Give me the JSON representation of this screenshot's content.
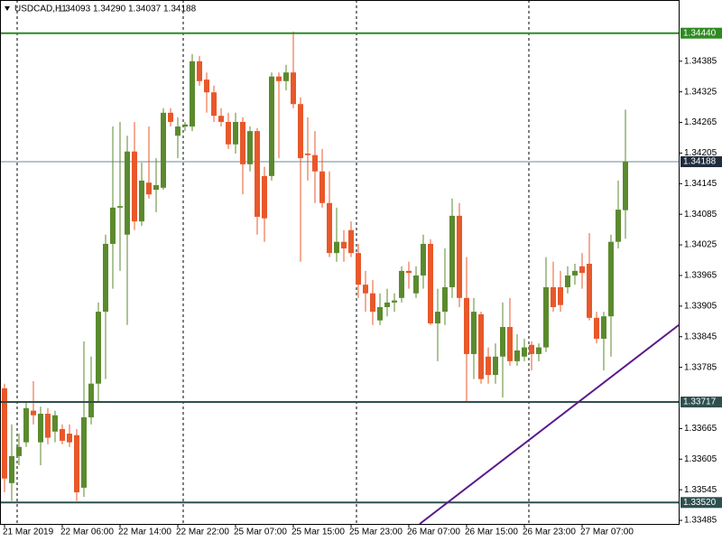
{
  "chart_data": {
    "type": "candlestick",
    "title": "USDCAD,H1",
    "ohlc_labels": [
      "1.34093",
      "1.34290",
      "1.34037",
      "1.34188"
    ],
    "candles": {
      "open": [
        1.33744,
        1.33558,
        1.33611,
        1.33638,
        1.337,
        1.33638,
        1.33694,
        1.33659,
        1.33664,
        1.33655,
        1.33652,
        1.33549,
        1.33687,
        1.33753,
        1.33894,
        1.34027,
        1.34098,
        1.34045,
        1.34208,
        1.34071,
        1.34147,
        1.34133,
        1.34137,
        1.34284,
        1.34239,
        1.34257,
        1.34257,
        1.34385,
        1.34349,
        1.34324,
        1.34278,
        1.34266,
        1.34222,
        1.34266,
        1.34183,
        1.34248,
        1.3416,
        1.3416,
        1.34355,
        1.34346,
        1.34363,
        1.34301,
        1.34204,
        1.34201,
        1.34169,
        1.34107,
        1.34009,
        1.34031,
        1.34054,
        1.34009,
        1.33947,
        1.3393,
        1.33877,
        1.33903,
        1.33912,
        1.33921,
        1.33974,
        1.3393,
        1.33965,
        1.34027,
        1.33871,
        1.33894,
        1.33942,
        1.34082,
        1.33921,
        1.33811,
        1.33889,
        1.33806,
        1.3377,
        1.33806,
        1.33864,
        1.33797,
        1.33806,
        1.33829,
        1.33811,
        1.33824,
        1.33942,
        1.33942,
        1.33942,
        1.33965,
        1.33983,
        1.33988,
        1.33882,
        1.33841,
        1.33885,
        1.34031,
        1.34093
      ],
      "high": [
        1.33753,
        1.33673,
        1.33655,
        1.33717,
        1.33758,
        1.33708,
        1.33705,
        1.337,
        1.33673,
        1.33673,
        1.33664,
        1.33836,
        1.33806,
        1.33912,
        1.34045,
        1.34257,
        1.34266,
        1.34239,
        1.34266,
        1.34186,
        1.34257,
        1.34195,
        1.34293,
        1.34293,
        1.34275,
        1.34266,
        1.34399,
        1.34395,
        1.34363,
        1.34337,
        1.34293,
        1.34284,
        1.34284,
        1.34275,
        1.34257,
        1.34254,
        1.34178,
        1.34363,
        1.34363,
        1.34378,
        1.34443,
        1.34314,
        1.34275,
        1.34248,
        1.34213,
        1.34169,
        1.34098,
        1.34054,
        1.34071,
        1.34027,
        1.33974,
        1.33956,
        1.3393,
        1.33939,
        1.3393,
        1.33983,
        1.33992,
        1.33983,
        1.34045,
        1.34036,
        1.33939,
        1.34018,
        1.34116,
        1.34107,
        1.34001,
        1.33921,
        1.33894,
        1.33824,
        1.33832,
        1.33912,
        1.33921,
        1.3385,
        1.33841,
        1.33836,
        1.33832,
        1.34001,
        1.33992,
        1.33974,
        1.33983,
        1.33988,
        1.34009,
        1.34048,
        1.33894,
        1.33894,
        1.34045,
        1.34151,
        1.3429
      ],
      "low": [
        1.3354,
        1.33523,
        1.33593,
        1.33629,
        1.33673,
        1.33593,
        1.33634,
        1.33638,
        1.33634,
        1.33629,
        1.33523,
        1.33531,
        1.33673,
        1.33717,
        1.33762,
        1.33939,
        1.33974,
        1.33868,
        1.34054,
        1.34062,
        1.34116,
        1.34089,
        1.34133,
        1.34257,
        1.34195,
        1.34248,
        1.34248,
        1.34337,
        1.34284,
        1.34266,
        1.34257,
        1.34213,
        1.34204,
        1.34124,
        1.34169,
        1.34045,
        1.34031,
        1.34151,
        1.34195,
        1.34328,
        1.34293,
        1.33992,
        1.34151,
        1.34107,
        1.34098,
        1.34001,
        1.33992,
        1.33992,
        1.34001,
        1.33921,
        1.33894,
        1.33868,
        1.33868,
        1.33885,
        1.33894,
        1.33912,
        1.33939,
        1.33921,
        1.33939,
        1.33868,
        1.33797,
        1.33868,
        1.33921,
        1.33903,
        1.33717,
        1.33762,
        1.33753,
        1.33753,
        1.33753,
        1.33726,
        1.33788,
        1.33788,
        1.33797,
        1.33779,
        1.33797,
        1.33815,
        1.33894,
        1.33894,
        1.3393,
        1.33947,
        1.33939,
        1.33877,
        1.33832,
        1.33779,
        1.33806,
        1.34018,
        1.34037
      ],
      "close": [
        1.33567,
        1.33611,
        1.33629,
        1.33705,
        1.33691,
        1.33694,
        1.33647,
        1.33691,
        1.33641,
        1.33638,
        1.3354,
        1.33687,
        1.33753,
        1.33894,
        1.34027,
        1.34098,
        1.34101,
        1.34208,
        1.34071,
        1.34151,
        1.34124,
        1.34142,
        1.34284,
        1.34266,
        1.34257,
        1.34261,
        1.34385,
        1.34346,
        1.34324,
        1.34278,
        1.34266,
        1.34222,
        1.34266,
        1.34183,
        1.34248,
        1.3408,
        1.34077,
        1.34355,
        1.34346,
        1.34363,
        1.34301,
        1.34195,
        1.34201,
        1.34169,
        1.34107,
        1.34009,
        1.34031,
        1.34018,
        1.34009,
        1.33947,
        1.3393,
        1.33894,
        1.33903,
        1.33912,
        1.33916,
        1.33974,
        1.3397,
        1.33965,
        1.34027,
        1.33871,
        1.33894,
        1.33942,
        1.34082,
        1.33921,
        1.33811,
        1.33894,
        1.33762,
        1.3377,
        1.33806,
        1.33864,
        1.33797,
        1.33818,
        1.33824,
        1.33811,
        1.33824,
        1.33942,
        1.33903,
        1.33907,
        1.33965,
        1.33974,
        1.3397,
        1.33882,
        1.33841,
        1.33885,
        1.34031,
        1.34094,
        1.34188
      ]
    },
    "up_color": "#5b8a2e",
    "down_color": "#e8582a",
    "ylim": [
      1.33478,
      1.34505
    ],
    "yticks": [
      1.34385,
      1.34325,
      1.34265,
      1.34205,
      1.34145,
      1.34085,
      1.34025,
      1.33965,
      1.33905,
      1.33845,
      1.33785,
      1.33665,
      1.33605,
      1.33545,
      1.33485
    ],
    "xticks": [
      {
        "value": 0,
        "label": "21 Mar 2019"
      },
      {
        "value": 8,
        "label": "22 Mar 06:00"
      },
      {
        "value": 16,
        "label": "22 Mar 14:00"
      },
      {
        "value": 24,
        "label": "22 Mar 22:00"
      },
      {
        "value": 32,
        "label": "25 Mar 07:00"
      },
      {
        "value": 40,
        "label": "25 Mar 15:00"
      },
      {
        "value": 48,
        "label": "25 Mar 23:00"
      },
      {
        "value": 56,
        "label": "26 Mar 07:00"
      },
      {
        "value": 64,
        "label": "26 Mar 15:00"
      },
      {
        "value": 72,
        "label": "26 Mar 23:00"
      },
      {
        "value": 80,
        "label": "27 Mar 07:00"
      }
    ],
    "price_lines": [
      {
        "value": 1.3444,
        "label": "1.34440",
        "color": "#2e8b22"
      },
      {
        "value": 1.33717,
        "label": "1.33717",
        "color": "#2f4f4f"
      },
      {
        "value": 1.3352,
        "label": "1.33520",
        "color": "#2f4f4f"
      }
    ],
    "current_price": {
      "value": 1.34188,
      "label": "1.34188",
      "color": "#6b8a99"
    },
    "trendline": {
      "x": [
        57.5,
        93.4
      ],
      "y": [
        1.33478,
        1.33868
      ],
      "color": "#5a1a8c"
    }
  }
}
